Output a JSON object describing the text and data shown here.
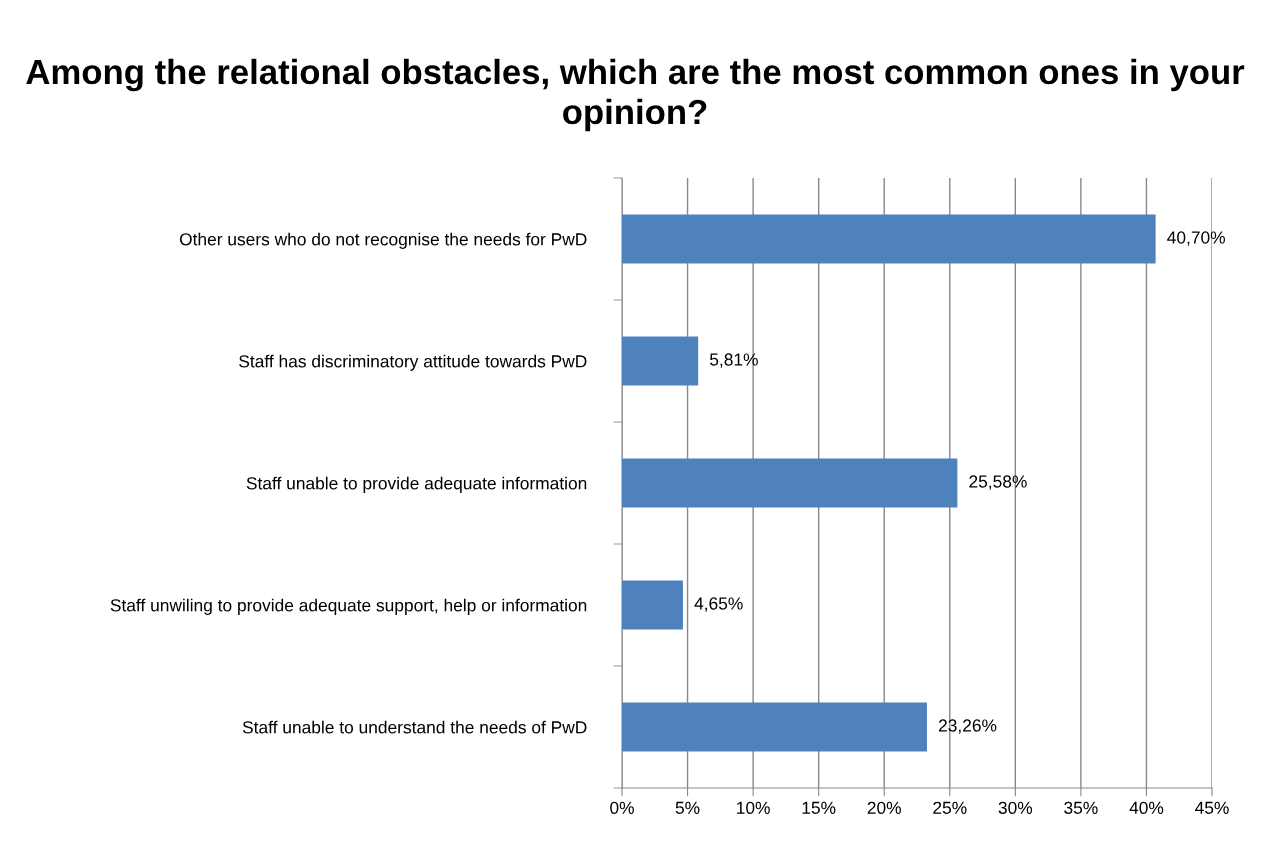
{
  "chart_data": {
    "type": "bar",
    "orientation": "horizontal",
    "title": "Among the relational obstacles, which are the most common ones in your opinion?",
    "categories": [
      "Other users who do not recognise the needs for PwD",
      "Staff has discriminatory attitude towards PwD",
      "Staff unable to provide adequate information",
      "Staff unwiling to provide adequate support, help or information",
      "Staff unable to understand the needs of PwD"
    ],
    "values": [
      40.7,
      5.81,
      25.58,
      4.65,
      23.26
    ],
    "value_labels": [
      "40,70%",
      "5,81%",
      "25,58%",
      "4,65%",
      "23,26%"
    ],
    "color": "#4f81bd",
    "xlim": [
      0,
      45
    ],
    "xticks": [
      {
        "value": 0,
        "label": "0%"
      },
      {
        "value": 5,
        "label": "5%"
      },
      {
        "value": 10,
        "label": "10%"
      },
      {
        "value": 15,
        "label": "15%"
      },
      {
        "value": 20,
        "label": "20%"
      },
      {
        "value": 25,
        "label": "25%"
      },
      {
        "value": 30,
        "label": "30%"
      },
      {
        "value": 35,
        "label": "35%"
      },
      {
        "value": 40,
        "label": "40%"
      },
      {
        "value": 45,
        "label": "45%"
      }
    ],
    "grid": "x",
    "legend": false
  }
}
